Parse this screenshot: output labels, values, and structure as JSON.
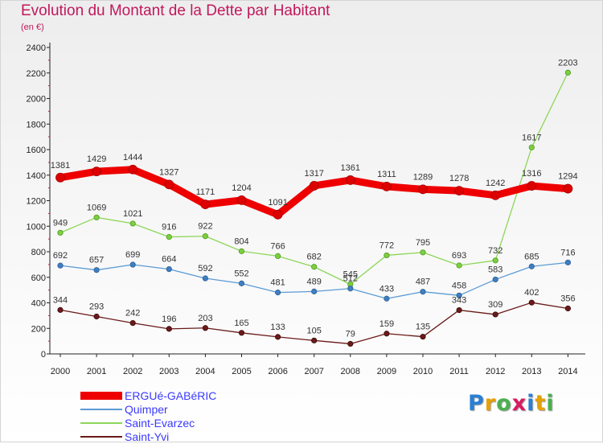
{
  "chart_data": {
    "type": "line",
    "title": "Evolution du Montant de la Dette par Habitant",
    "subtitle": "(en €)",
    "x": [
      "2000",
      "2001",
      "2002",
      "2003",
      "2004",
      "2005",
      "2006",
      "2007",
      "2008",
      "2009",
      "2010",
      "2011",
      "2012",
      "2013",
      "2014"
    ],
    "ylim": [
      0,
      2400
    ],
    "yticks": [
      0,
      200,
      400,
      600,
      800,
      1000,
      1200,
      1400,
      1600,
      1800,
      2000,
      2200,
      2400
    ],
    "grid": false,
    "legend_position": "bottom-left",
    "series": [
      {
        "name": "ERGUé-GABéRIC",
        "color": "#ee0000",
        "values": [
          1381,
          1429,
          1444,
          1327,
          1171,
          1204,
          1091,
          1317,
          1361,
          1311,
          1289,
          1278,
          1242,
          1316,
          1294
        ]
      },
      {
        "name": "Quimper",
        "color": "#5b9bd5",
        "values": [
          692,
          657,
          699,
          664,
          592,
          552,
          481,
          489,
          512,
          433,
          487,
          458,
          583,
          685,
          716
        ]
      },
      {
        "name": "Saint-Evarzec",
        "color": "#8ed65a",
        "values": [
          949,
          1069,
          1021,
          916,
          922,
          804,
          766,
          682,
          545,
          772,
          795,
          693,
          732,
          1617,
          2203
        ]
      },
      {
        "name": "Saint-Yvi",
        "color": "#6b1a1a",
        "values": [
          344,
          293,
          242,
          196,
          203,
          165,
          133,
          105,
          79,
          159,
          135,
          343,
          309,
          402,
          356
        ]
      }
    ]
  },
  "brand": {
    "letters": [
      "P",
      "r",
      "o",
      "x",
      "i",
      "t",
      "i"
    ]
  }
}
